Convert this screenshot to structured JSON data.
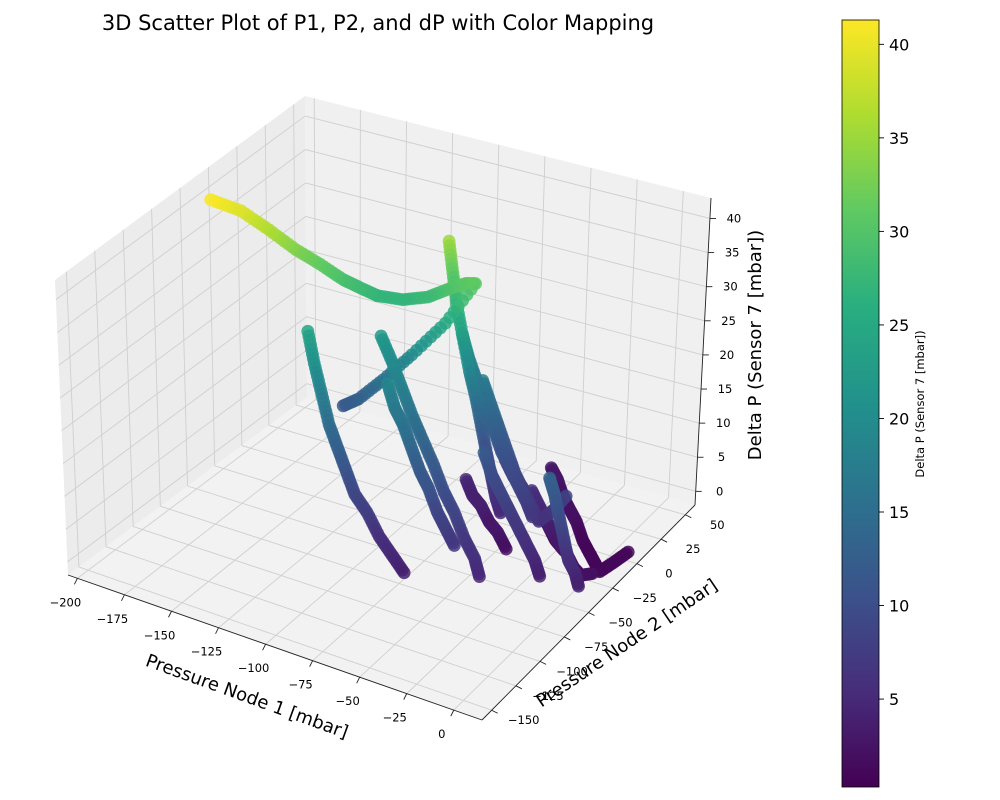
{
  "chart_data": {
    "type": "scatter",
    "title": "3D Scatter Plot of P1, P2, and dP with Color Mapping",
    "xlabel": "Pressure Node 1 [mbar]",
    "ylabel": "Pressure Node 2 [mbar]",
    "zlabel": "Delta P (Sensor 7 [mbar])",
    "xlim": [
      -205,
      15
    ],
    "ylim": [
      -160,
      60
    ],
    "zlim": [
      -2,
      43
    ],
    "x_ticks": [
      -200,
      -175,
      -150,
      -125,
      -100,
      -75,
      -50,
      -25,
      0
    ],
    "y_ticks": [
      -150,
      -125,
      -100,
      -75,
      -50,
      -25,
      0,
      25,
      50
    ],
    "z_ticks": [
      0,
      5,
      10,
      15,
      20,
      25,
      30,
      35,
      40
    ],
    "grid": true,
    "colormap": "viridis",
    "colorbar": {
      "label": "Delta P (Sensor 7 [mbar])",
      "range": [
        0.3,
        41.3
      ],
      "ticks": [
        5,
        10,
        15,
        20,
        25,
        30,
        35,
        40
      ]
    },
    "series": [
      {
        "points": [
          [
            -195,
            -40,
            41
          ],
          [
            -185,
            -30,
            39
          ],
          [
            -175,
            -22,
            36
          ],
          [
            -165,
            -15,
            33
          ],
          [
            -155,
            -10,
            31
          ],
          [
            -145,
            -6,
            29
          ],
          [
            -138,
            -3,
            28
          ],
          [
            -130,
            0,
            27
          ]
        ]
      },
      {
        "points": [
          [
            -130,
            0,
            27
          ],
          [
            -118,
            3,
            27
          ],
          [
            -106,
            6,
            28
          ],
          [
            -95,
            8,
            30
          ],
          [
            -88,
            10,
            31
          ],
          [
            -84,
            12,
            31
          ],
          [
            -96,
            5,
            25
          ],
          [
            -110,
            -2,
            20
          ],
          [
            -122,
            -8,
            16
          ],
          [
            -132,
            -14,
            13
          ],
          [
            -138,
            -18,
            12
          ]
        ]
      },
      {
        "points": [
          [
            -102,
            18,
            35
          ],
          [
            -98,
            15,
            31
          ],
          [
            -94,
            12,
            27
          ],
          [
            -88,
            8,
            23
          ],
          [
            -82,
            4,
            19
          ],
          [
            -76,
            0,
            16
          ],
          [
            -70,
            -5,
            13
          ],
          [
            -64,
            -10,
            10
          ],
          [
            -58,
            -16,
            8
          ],
          [
            -52,
            -22,
            6
          ],
          [
            -46,
            -28,
            5
          ]
        ]
      },
      {
        "points": [
          [
            -150,
            -30,
            24
          ],
          [
            -142,
            -38,
            21
          ],
          [
            -134,
            -45,
            18
          ],
          [
            -126,
            -52,
            15
          ],
          [
            -118,
            -58,
            13
          ],
          [
            -110,
            -64,
            11
          ],
          [
            -102,
            -70,
            9
          ],
          [
            -92,
            -76,
            8
          ],
          [
            -82,
            -82,
            6
          ],
          [
            -72,
            -88,
            5
          ],
          [
            -62,
            -94,
            4
          ]
        ]
      },
      {
        "points": [
          [
            -125,
            -5,
            22
          ],
          [
            -115,
            -12,
            20
          ],
          [
            -105,
            -20,
            18
          ],
          [
            -95,
            -28,
            16
          ],
          [
            -85,
            -35,
            14
          ],
          [
            -75,
            -42,
            12
          ],
          [
            -65,
            -50,
            10
          ],
          [
            -55,
            -58,
            9
          ],
          [
            -45,
            -66,
            7
          ],
          [
            -35,
            -74,
            6
          ],
          [
            -28,
            -82,
            5
          ]
        ]
      },
      {
        "points": [
          [
            -95,
            20,
            21
          ],
          [
            -88,
            14,
            19
          ],
          [
            -80,
            8,
            17
          ],
          [
            -72,
            2,
            15
          ],
          [
            -64,
            -4,
            13
          ],
          [
            -56,
            -10,
            11
          ],
          [
            -48,
            -16,
            10
          ],
          [
            -40,
            -22,
            9
          ],
          [
            -32,
            -28,
            8
          ],
          [
            -26,
            -33,
            7
          ]
        ]
      },
      {
        "points": [
          [
            -110,
            -25,
            19
          ],
          [
            -102,
            -32,
            17
          ],
          [
            -94,
            -38,
            16
          ],
          [
            -86,
            -44,
            14
          ],
          [
            -78,
            -50,
            12
          ],
          [
            -70,
            -56,
            11
          ],
          [
            -62,
            -62,
            9
          ],
          [
            -54,
            -68,
            8
          ],
          [
            -46,
            -74,
            7
          ]
        ]
      },
      {
        "points": [
          [
            -78,
            10,
            17
          ],
          [
            -70,
            4,
            15
          ],
          [
            -62,
            -2,
            13
          ],
          [
            -54,
            -8,
            11
          ],
          [
            -46,
            -14,
            9
          ],
          [
            -38,
            -20,
            8
          ],
          [
            -30,
            -26,
            7
          ],
          [
            -24,
            -30,
            6
          ],
          [
            -20,
            -22,
            7
          ],
          [
            -18,
            -14,
            8
          ]
        ]
      },
      {
        "points": [
          [
            -60,
            -20,
            12
          ],
          [
            -52,
            -26,
            10
          ],
          [
            -44,
            -32,
            9
          ],
          [
            -36,
            -38,
            8
          ],
          [
            -28,
            -44,
            7
          ],
          [
            -20,
            -50,
            6
          ],
          [
            -12,
            -56,
            5
          ],
          [
            -6,
            -62,
            4
          ]
        ]
      },
      {
        "points": [
          [
            -40,
            -8,
            6
          ],
          [
            -32,
            -14,
            5
          ],
          [
            -24,
            -20,
            4
          ],
          [
            -16,
            -26,
            3
          ],
          [
            -8,
            -32,
            3
          ],
          [
            0,
            -38,
            2
          ],
          [
            6,
            -42,
            2
          ],
          [
            10,
            -38,
            2
          ]
        ]
      },
      {
        "points": [
          [
            -50,
            30,
            3
          ],
          [
            -42,
            22,
            3
          ],
          [
            -34,
            14,
            2
          ],
          [
            -26,
            6,
            2
          ],
          [
            -18,
            -2,
            2
          ],
          [
            -10,
            -10,
            1
          ],
          [
            -2,
            -18,
            1
          ],
          [
            4,
            -24,
            1
          ],
          [
            10,
            -30,
            1
          ],
          [
            12,
            -20,
            1
          ],
          [
            14,
            -8,
            1
          ]
        ]
      },
      {
        "points": [
          [
            -70,
            20,
            4
          ],
          [
            -62,
            14,
            3
          ],
          [
            -54,
            8,
            3
          ],
          [
            -46,
            2,
            2
          ],
          [
            -38,
            -4,
            2
          ],
          [
            -30,
            -10,
            2
          ],
          [
            -22,
            -16,
            1
          ],
          [
            -14,
            -22,
            1
          ]
        ]
      },
      {
        "points": [
          [
            -20,
            -28,
            13
          ],
          [
            -14,
            -34,
            12
          ],
          [
            -8,
            -40,
            10
          ],
          [
            -2,
            -46,
            8
          ],
          [
            4,
            -52,
            6
          ],
          [
            10,
            -56,
            5
          ],
          [
            14,
            -60,
            4
          ]
        ]
      },
      {
        "points": [
          [
            -75,
            -10,
            5
          ],
          [
            -68,
            -16,
            4
          ],
          [
            -60,
            -22,
            4
          ],
          [
            -52,
            -28,
            3
          ],
          [
            -44,
            -34,
            3
          ],
          [
            -36,
            -40,
            2
          ]
        ]
      }
    ]
  }
}
